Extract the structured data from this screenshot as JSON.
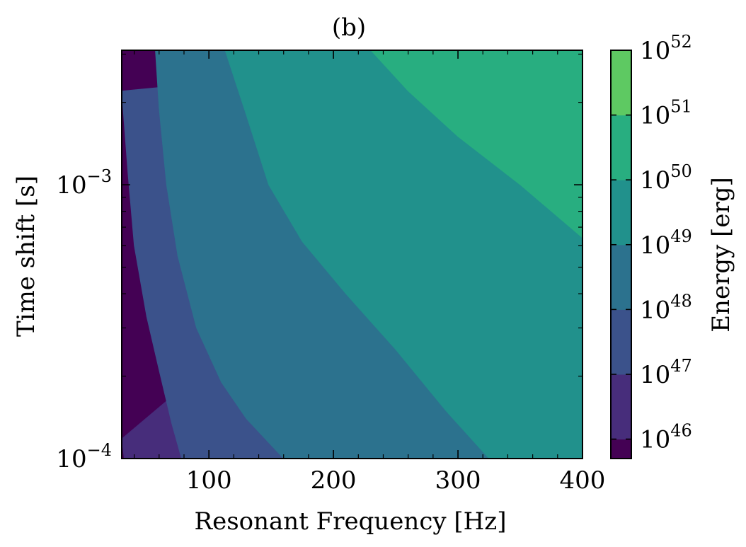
{
  "chart_data": {
    "type": "heatmap",
    "title": "(b)",
    "xlabel": "Resonant Frequency [Hz]",
    "ylabel": "Time shift [s]",
    "xlim": [
      30,
      400
    ],
    "ylim": [
      0.0001,
      0.0031
    ],
    "yscale": "log",
    "grid": false,
    "x_ticks": [
      {
        "value": 100,
        "label": "100"
      },
      {
        "value": 200,
        "label": "200"
      },
      {
        "value": 300,
        "label": "300"
      },
      {
        "value": 400,
        "label": "400"
      }
    ],
    "y_ticks": [
      {
        "value": 0.0001,
        "base": "10",
        "exp": "−4"
      },
      {
        "value": 0.001,
        "base": "10",
        "exp": "−3"
      }
    ],
    "colorbar": {
      "label": "Energy [erg]",
      "scale": "log",
      "levels": [
        45.7,
        46,
        47,
        48,
        49,
        50,
        51,
        52
      ],
      "ticks": [
        {
          "value": 46,
          "base": "10",
          "exp": "46"
        },
        {
          "value": 47,
          "base": "10",
          "exp": "47"
        },
        {
          "value": 48,
          "base": "10",
          "exp": "48"
        },
        {
          "value": 49,
          "base": "10",
          "exp": "49"
        },
        {
          "value": 50,
          "base": "10",
          "exp": "50"
        },
        {
          "value": 51,
          "base": "10",
          "exp": "51"
        },
        {
          "value": 52,
          "base": "10",
          "exp": "52"
        }
      ],
      "colors": [
        "#440154",
        "#472d7b",
        "#3b528b",
        "#2c728e",
        "#21918c",
        "#28ae80",
        "#5ec962",
        "#c8e020"
      ]
    },
    "contour_boundaries": [
      {
        "level": 46,
        "points": [
          [
            30,
            0.000118
          ],
          [
            32,
            0.0001
          ]
        ]
      },
      {
        "level": 47,
        "points": [
          [
            30,
            0.0022
          ],
          [
            35,
            0.0011
          ],
          [
            40,
            0.0006
          ],
          [
            50,
            0.00033
          ],
          [
            60,
            0.00021
          ],
          [
            70,
            0.000135
          ],
          [
            78,
            0.0001
          ]
        ]
      },
      {
        "level": 48,
        "points": [
          [
            57,
            0.0031
          ],
          [
            60,
            0.0019
          ],
          [
            66,
            0.001
          ],
          [
            75,
            0.00055
          ],
          [
            90,
            0.0003
          ],
          [
            110,
            0.00019
          ],
          [
            130,
            0.00014
          ],
          [
            160,
            0.0001
          ]
        ]
      },
      {
        "level": 49,
        "points": [
          [
            113,
            0.0031
          ],
          [
            130,
            0.0018
          ],
          [
            148,
            0.001
          ],
          [
            175,
            0.00062
          ],
          [
            210,
            0.0004
          ],
          [
            250,
            0.00025
          ],
          [
            290,
            0.00015
          ],
          [
            325,
            0.0001
          ]
        ]
      },
      {
        "level": 50,
        "points": [
          [
            230,
            0.0031
          ],
          [
            260,
            0.0022
          ],
          [
            300,
            0.0015
          ],
          [
            350,
            0.001
          ],
          [
            400,
            0.00064
          ]
        ]
      }
    ]
  }
}
